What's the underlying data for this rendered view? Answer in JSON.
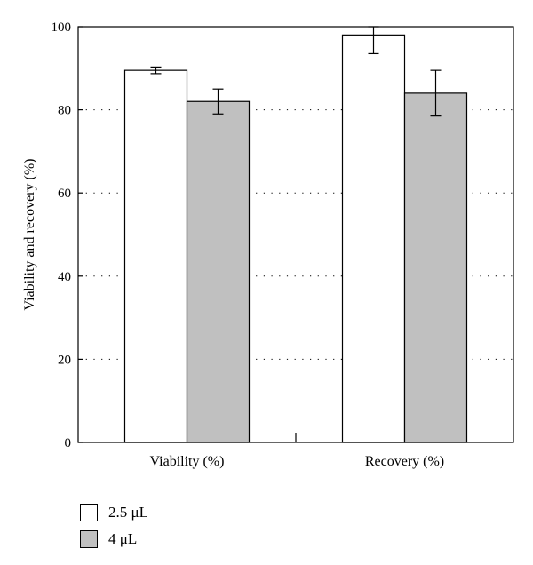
{
  "chart_data": {
    "type": "bar",
    "title": "",
    "xlabel": "",
    "ylabel": "Viability and recovery (%)",
    "ylim": [
      0,
      100
    ],
    "yticks": [
      0,
      20,
      40,
      60,
      80,
      100
    ],
    "grid": "dotted-horizontal",
    "legend_position": "bottom-left",
    "categories": [
      "Viability (%)",
      "Recovery (%)"
    ],
    "series": [
      {
        "name": "2.5 μL",
        "color": "#ffffff",
        "values": [
          89.5,
          98
        ],
        "errors": [
          0.8,
          4.5
        ]
      },
      {
        "name": "4 μL",
        "color": "#c0c0c0",
        "values": [
          82,
          84
        ],
        "errors": [
          3,
          5.5
        ]
      }
    ]
  }
}
